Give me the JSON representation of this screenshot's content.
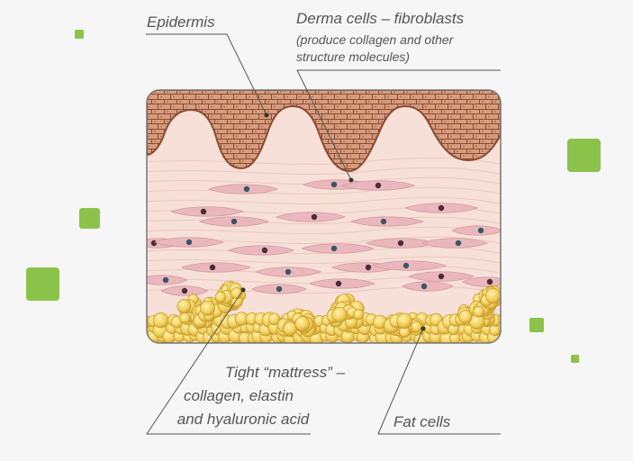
{
  "labels": {
    "epidermis": "Epidermis",
    "derma_title": "Derma cells – fibroblasts",
    "derma_sub_1": "(produce collagen and other",
    "derma_sub_2": "structure molecules)",
    "mattress_1": "Tight “mattress” –",
    "mattress_2": "collagen, elastin",
    "mattress_3": "and hyaluronic acid",
    "fat": "Fat cells"
  },
  "colors": {
    "background": "#f6f6f6",
    "accent_green": "#8bc34a",
    "epidermis_fill": "#d49a78",
    "epidermis_stroke": "#8a4b35",
    "dermis_fill": "#f6e0d8",
    "fibroblast_fill": "#eab8bc",
    "nucleus": "#4a2d3a",
    "nucleus_blue": "#3b5566",
    "fat_fill": "#f4d266",
    "fat_stroke": "#c69a2a",
    "leader_line": "#555555"
  }
}
